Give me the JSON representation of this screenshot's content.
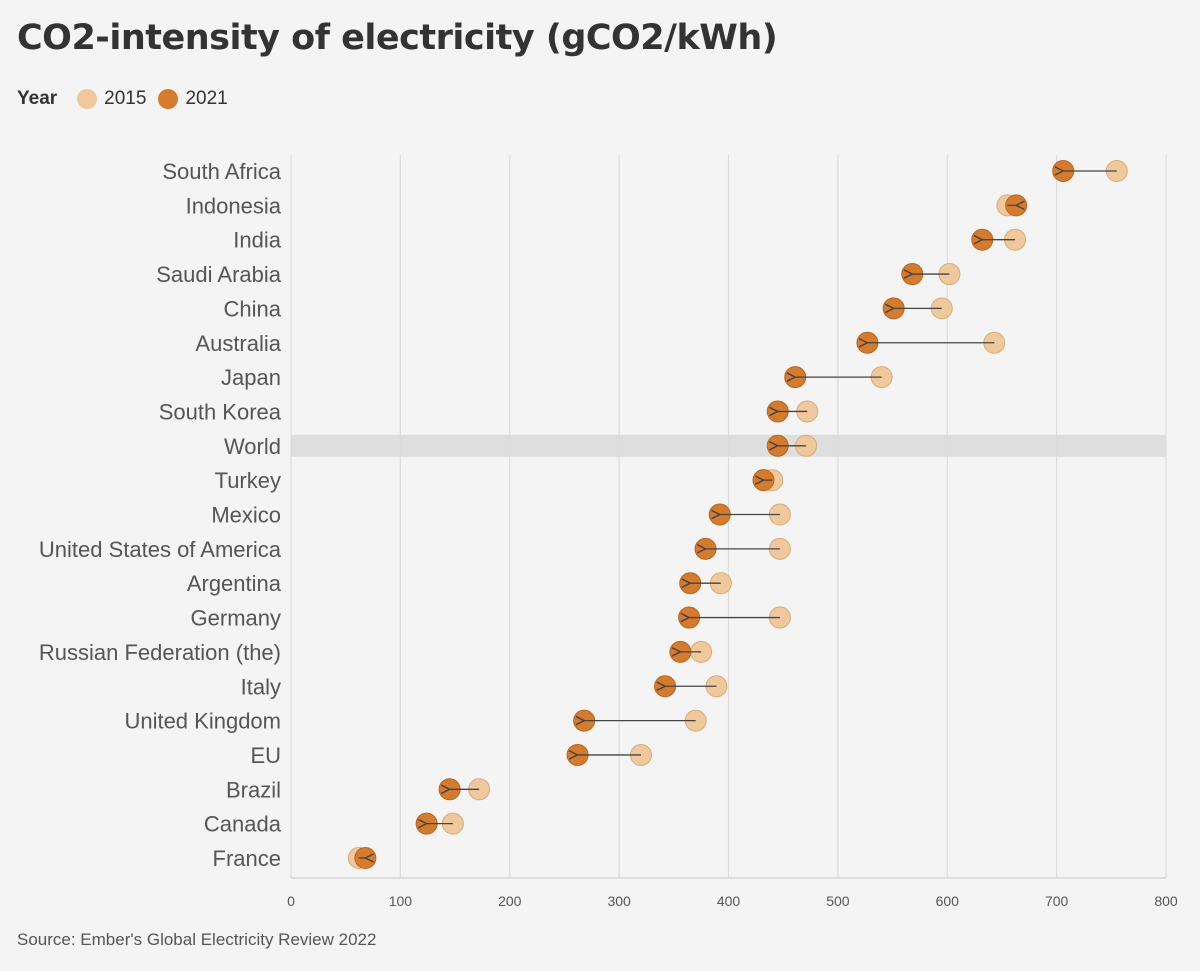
{
  "title": "CO2-intensity of electricity (gCO2/kWh)",
  "legend": {
    "title": "Year",
    "items": [
      {
        "label": "2015",
        "color": "#efc89c"
      },
      {
        "label": "2021",
        "color": "#d67a2c"
      }
    ]
  },
  "source": "Source: Ember's Global Electricity Review 2022",
  "chart_data": {
    "type": "scatter",
    "subtype": "arrow-dumbbell",
    "xlim": [
      0,
      800
    ],
    "xticks": [
      0,
      100,
      200,
      300,
      400,
      500,
      600,
      700,
      800
    ],
    "grid": "vertical",
    "highlight_category": "World",
    "series": [
      {
        "name": "2015",
        "color": "#efc89c"
      },
      {
        "name": "2021",
        "color": "#d67a2c"
      }
    ],
    "categories": [
      "South Africa",
      "Indonesia",
      "India",
      "Saudi Arabia",
      "China",
      "Australia",
      "Japan",
      "South Korea",
      "World",
      "Turkey",
      "Mexico",
      "United States of America",
      "Argentina",
      "Germany",
      "Russian Federation (the)",
      "Italy",
      "United Kingdom",
      "EU",
      "Brazil",
      "Canada",
      "France"
    ],
    "values_2015": [
      755,
      655,
      662,
      602,
      595,
      643,
      540,
      472,
      471,
      440,
      447,
      447,
      393,
      447,
      375,
      389,
      370,
      320,
      172,
      148,
      62
    ],
    "values_2021": [
      706,
      663,
      632,
      568,
      551,
      527,
      461,
      445,
      445,
      432,
      392,
      379,
      365,
      364,
      356,
      342,
      268,
      262,
      145,
      124,
      68
    ]
  }
}
